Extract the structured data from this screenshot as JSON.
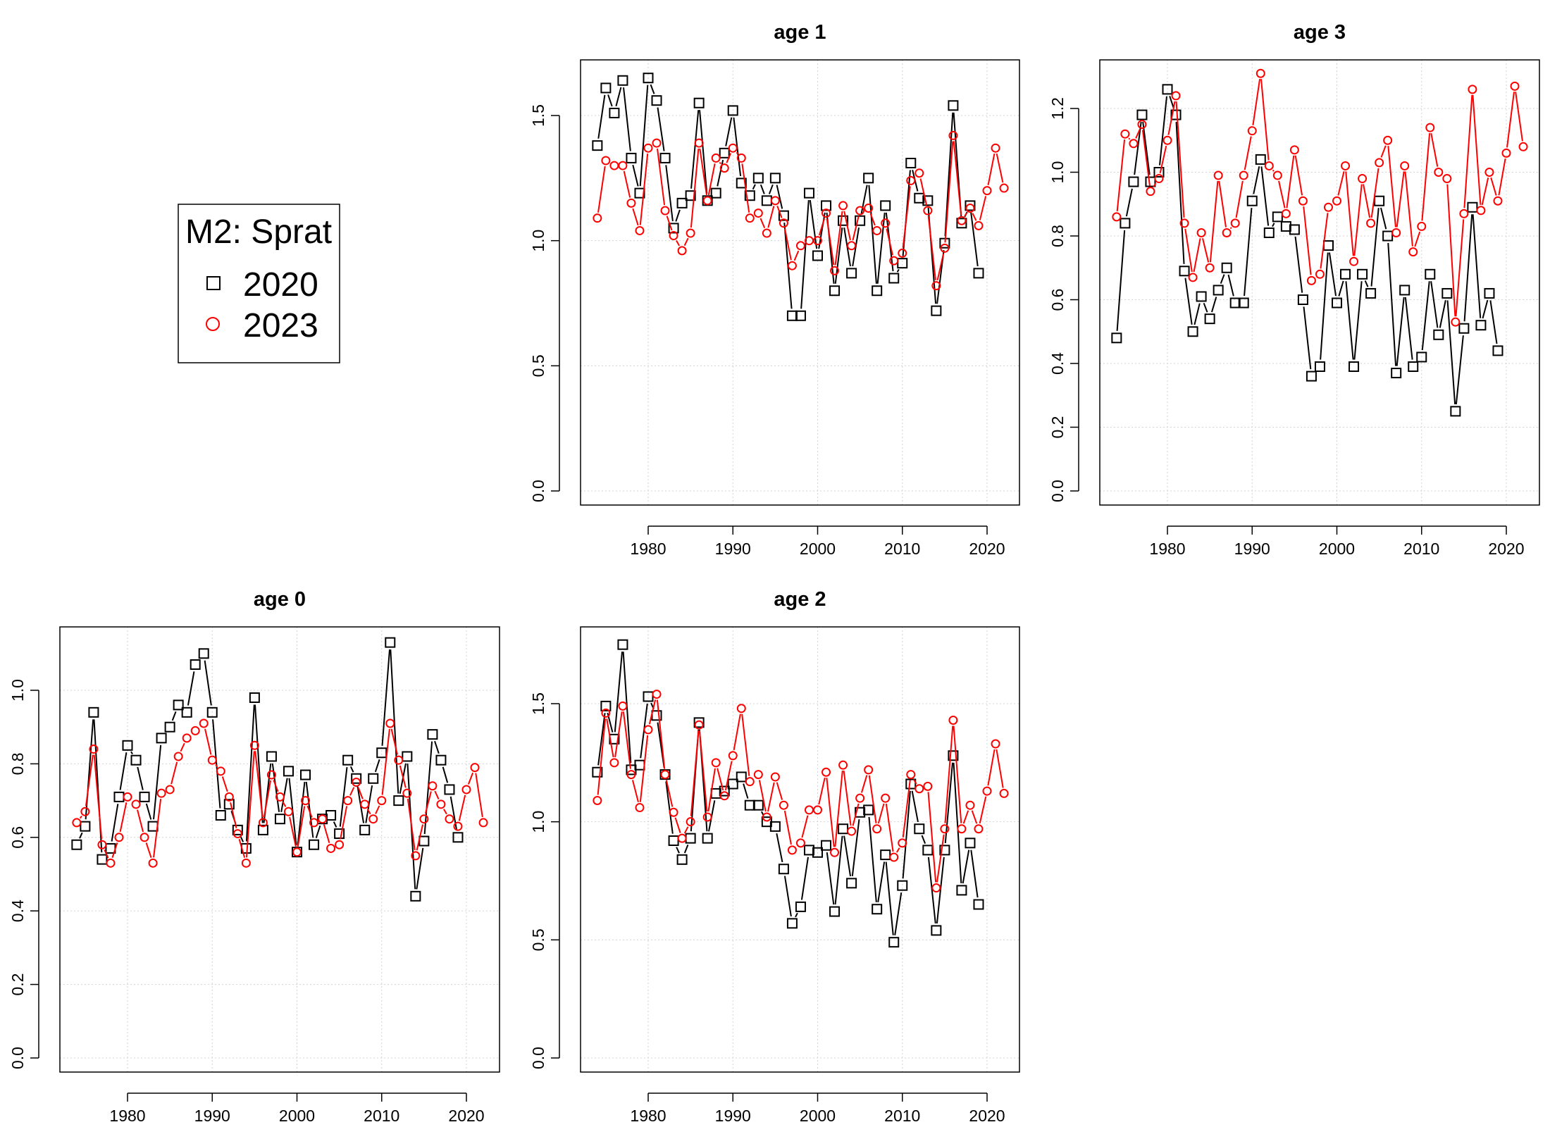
{
  "legend": {
    "title": "M2: Sprat",
    "entries": [
      {
        "label": "2020",
        "color": "#000000",
        "marker": "square-icon"
      },
      {
        "label": "2023",
        "color": "#ff0000",
        "marker": "circle-icon"
      }
    ]
  },
  "chart_data": [
    {
      "type": "line",
      "title": "age 1",
      "xlabel": "",
      "ylabel": "",
      "xlim": [
        1974,
        2022
      ],
      "ylim": [
        0,
        1.5
      ],
      "xticks": [
        "1980",
        "1990",
        "2000",
        "2010",
        "2020"
      ],
      "yticks": [
        "0.0",
        "0.5",
        "1.0",
        "1.5"
      ],
      "grid": true,
      "series": [
        {
          "name": "2020",
          "color": "#000000",
          "x": [
            1974,
            1975,
            1976,
            1977,
            1978,
            1979,
            1980,
            1981,
            1982,
            1983,
            1984,
            1985,
            1986,
            1987,
            1988,
            1989,
            1990,
            1991,
            1992,
            1993,
            1994,
            1995,
            1996,
            1997,
            1998,
            1999,
            2000,
            2001,
            2002,
            2003,
            2004,
            2005,
            2006,
            2007,
            2008,
            2009,
            2010,
            2011,
            2012,
            2013,
            2014,
            2015,
            2016,
            2017,
            2018,
            2019
          ],
          "y": [
            1.38,
            1.61,
            1.51,
            1.64,
            1.33,
            1.19,
            1.65,
            1.56,
            1.33,
            1.05,
            1.15,
            1.18,
            1.55,
            1.16,
            1.19,
            1.35,
            1.52,
            1.23,
            1.18,
            1.25,
            1.16,
            1.25,
            1.1,
            0.7,
            0.7,
            1.19,
            0.94,
            1.14,
            0.8,
            1.08,
            0.87,
            1.08,
            1.25,
            0.8,
            1.14,
            0.85,
            0.91,
            1.31,
            1.17,
            1.16,
            0.72,
            0.99,
            1.54,
            1.07,
            1.14,
            0.87
          ]
        },
        {
          "name": "2023",
          "color": "#ff0000",
          "x": [
            1974,
            1975,
            1976,
            1977,
            1978,
            1979,
            1980,
            1981,
            1982,
            1983,
            1984,
            1985,
            1986,
            1987,
            1988,
            1989,
            1990,
            1991,
            1992,
            1993,
            1994,
            1995,
            1996,
            1997,
            1998,
            1999,
            2000,
            2001,
            2002,
            2003,
            2004,
            2005,
            2006,
            2007,
            2008,
            2009,
            2010,
            2011,
            2012,
            2013,
            2014,
            2015,
            2016,
            2017,
            2018,
            2019,
            2020,
            2021,
            2022
          ],
          "y": [
            1.09,
            1.32,
            1.3,
            1.3,
            1.15,
            1.04,
            1.37,
            1.39,
            1.12,
            1.02,
            0.96,
            1.03,
            1.39,
            1.16,
            1.33,
            1.29,
            1.37,
            1.33,
            1.09,
            1.11,
            1.03,
            1.16,
            1.07,
            0.9,
            0.98,
            1.0,
            1.0,
            1.11,
            0.88,
            1.14,
            0.98,
            1.12,
            1.13,
            1.04,
            1.07,
            0.92,
            0.95,
            1.24,
            1.27,
            1.12,
            0.82,
            0.97,
            1.42,
            1.08,
            1.13,
            1.06,
            1.2,
            1.37,
            1.21
          ]
        }
      ]
    },
    {
      "type": "line",
      "title": "age 3",
      "xlabel": "",
      "ylabel": "",
      "xlim": [
        1974,
        2022
      ],
      "ylim": [
        0,
        1.3
      ],
      "xticks": [
        "1980",
        "1990",
        "2000",
        "2010",
        "2020"
      ],
      "yticks": [
        "0.0",
        "0.2",
        "0.4",
        "0.6",
        "0.8",
        "1.0",
        "1.2"
      ],
      "grid": true,
      "series": [
        {
          "name": "2020",
          "color": "#000000",
          "x": [
            1974,
            1975,
            1976,
            1977,
            1978,
            1979,
            1980,
            1981,
            1982,
            1983,
            1984,
            1985,
            1986,
            1987,
            1988,
            1989,
            1990,
            1991,
            1992,
            1993,
            1994,
            1995,
            1996,
            1997,
            1998,
            1999,
            2000,
            2001,
            2002,
            2003,
            2004,
            2005,
            2006,
            2007,
            2008,
            2009,
            2010,
            2011,
            2012,
            2013,
            2014,
            2015,
            2016,
            2017,
            2018,
            2019
          ],
          "y": [
            0.48,
            0.84,
            0.97,
            1.18,
            0.97,
            1.0,
            1.26,
            1.18,
            0.69,
            0.5,
            0.61,
            0.54,
            0.63,
            0.7,
            0.59,
            0.59,
            0.91,
            1.04,
            0.81,
            0.86,
            0.83,
            0.82,
            0.6,
            0.36,
            0.39,
            0.77,
            0.59,
            0.68,
            0.39,
            0.68,
            0.62,
            0.91,
            0.8,
            0.37,
            0.63,
            0.39,
            0.42,
            0.68,
            0.49,
            0.62,
            0.25,
            0.51,
            0.89,
            0.52,
            0.62,
            0.44
          ]
        },
        {
          "name": "2023",
          "color": "#ff0000",
          "x": [
            1974,
            1975,
            1976,
            1977,
            1978,
            1979,
            1980,
            1981,
            1982,
            1983,
            1984,
            1985,
            1986,
            1987,
            1988,
            1989,
            1990,
            1991,
            1992,
            1993,
            1994,
            1995,
            1996,
            1997,
            1998,
            1999,
            2000,
            2001,
            2002,
            2003,
            2004,
            2005,
            2006,
            2007,
            2008,
            2009,
            2010,
            2011,
            2012,
            2013,
            2014,
            2015,
            2016,
            2017,
            2018,
            2019,
            2020,
            2021,
            2022
          ],
          "y": [
            0.86,
            1.12,
            1.09,
            1.15,
            0.94,
            0.98,
            1.1,
            1.24,
            0.84,
            0.67,
            0.81,
            0.7,
            0.99,
            0.81,
            0.84,
            0.99,
            1.13,
            1.31,
            1.02,
            0.99,
            0.87,
            1.07,
            0.91,
            0.66,
            0.68,
            0.89,
            0.91,
            1.02,
            0.72,
            0.98,
            0.84,
            1.03,
            1.1,
            0.81,
            1.02,
            0.75,
            0.83,
            1.14,
            1.0,
            0.98,
            0.53,
            0.87,
            1.26,
            0.88,
            1.0,
            0.91,
            1.06,
            1.27,
            1.08
          ]
        }
      ]
    },
    {
      "type": "line",
      "title": "age 0",
      "xlabel": "",
      "ylabel": "",
      "xlim": [
        1974,
        2022
      ],
      "ylim": [
        0,
        1.1
      ],
      "xticks": [
        "1980",
        "1990",
        "2000",
        "2010",
        "2020"
      ],
      "yticks": [
        "0.0",
        "0.2",
        "0.4",
        "0.6",
        "0.8",
        "1.0"
      ],
      "grid": true,
      "series": [
        {
          "name": "2020",
          "color": "#000000",
          "x": [
            1974,
            1975,
            1976,
            1977,
            1978,
            1979,
            1980,
            1981,
            1982,
            1983,
            1984,
            1985,
            1986,
            1987,
            1988,
            1989,
            1990,
            1991,
            1992,
            1993,
            1994,
            1995,
            1996,
            1997,
            1998,
            1999,
            2000,
            2001,
            2002,
            2003,
            2004,
            2005,
            2006,
            2007,
            2008,
            2009,
            2010,
            2011,
            2012,
            2013,
            2014,
            2015,
            2016,
            2017,
            2018,
            2019
          ],
          "y": [
            0.58,
            0.63,
            0.94,
            0.54,
            0.57,
            0.71,
            0.85,
            0.81,
            0.71,
            0.63,
            0.87,
            0.9,
            0.96,
            0.94,
            1.07,
            1.1,
            0.94,
            0.66,
            0.69,
            0.62,
            0.57,
            0.98,
            0.62,
            0.82,
            0.65,
            0.78,
            0.56,
            0.77,
            0.58,
            0.65,
            0.66,
            0.61,
            0.81,
            0.76,
            0.62,
            0.76,
            0.83,
            1.13,
            0.7,
            0.82,
            0.44,
            0.59,
            0.88,
            0.81,
            0.73,
            0.6
          ]
        },
        {
          "name": "2023",
          "color": "#ff0000",
          "x": [
            1974,
            1975,
            1976,
            1977,
            1978,
            1979,
            1980,
            1981,
            1982,
            1983,
            1984,
            1985,
            1986,
            1987,
            1988,
            1989,
            1990,
            1991,
            1992,
            1993,
            1994,
            1995,
            1996,
            1997,
            1998,
            1999,
            2000,
            2001,
            2002,
            2003,
            2004,
            2005,
            2006,
            2007,
            2008,
            2009,
            2010,
            2011,
            2012,
            2013,
            2014,
            2015,
            2016,
            2017,
            2018,
            2019,
            2020,
            2021,
            2022
          ],
          "y": [
            0.64,
            0.67,
            0.84,
            0.58,
            0.53,
            0.6,
            0.71,
            0.69,
            0.6,
            0.53,
            0.72,
            0.73,
            0.82,
            0.87,
            0.89,
            0.91,
            0.81,
            0.78,
            0.71,
            0.61,
            0.53,
            0.85,
            0.64,
            0.77,
            0.71,
            0.67,
            0.56,
            0.7,
            0.64,
            0.65,
            0.57,
            0.58,
            0.7,
            0.75,
            0.69,
            0.65,
            0.7,
            0.91,
            0.81,
            0.72,
            0.55,
            0.65,
            0.74,
            0.69,
            0.65,
            0.63,
            0.73,
            0.79,
            0.64
          ]
        }
      ]
    },
    {
      "type": "line",
      "title": "age 2",
      "xlabel": "",
      "ylabel": "",
      "xlim": [
        1974,
        2022
      ],
      "ylim": [
        0,
        1.75
      ],
      "xticks": [
        "1980",
        "1990",
        "2000",
        "2010",
        "2020"
      ],
      "yticks": [
        "0.0",
        "0.5",
        "1.0",
        "1.5"
      ],
      "grid": true,
      "series": [
        {
          "name": "2020",
          "color": "#000000",
          "x": [
            1974,
            1975,
            1976,
            1977,
            1978,
            1979,
            1980,
            1981,
            1982,
            1983,
            1984,
            1985,
            1986,
            1987,
            1988,
            1989,
            1990,
            1991,
            1992,
            1993,
            1994,
            1995,
            1996,
            1997,
            1998,
            1999,
            2000,
            2001,
            2002,
            2003,
            2004,
            2005,
            2006,
            2007,
            2008,
            2009,
            2010,
            2011,
            2012,
            2013,
            2014,
            2015,
            2016,
            2017,
            2018,
            2019
          ],
          "y": [
            1.21,
            1.49,
            1.35,
            1.75,
            1.22,
            1.24,
            1.53,
            1.45,
            1.2,
            0.92,
            0.84,
            0.93,
            1.42,
            0.93,
            1.12,
            1.13,
            1.16,
            1.19,
            1.07,
            1.07,
            1.0,
            0.98,
            0.8,
            0.57,
            0.64,
            0.88,
            0.87,
            0.9,
            0.62,
            0.97,
            0.74,
            1.04,
            1.05,
            0.63,
            0.86,
            0.49,
            0.73,
            1.16,
            0.97,
            0.88,
            0.54,
            0.88,
            1.28,
            0.71,
            0.91,
            0.65
          ]
        },
        {
          "name": "2023",
          "color": "#ff0000",
          "x": [
            1974,
            1975,
            1976,
            1977,
            1978,
            1979,
            1980,
            1981,
            1982,
            1983,
            1984,
            1985,
            1986,
            1987,
            1988,
            1989,
            1990,
            1991,
            1992,
            1993,
            1994,
            1995,
            1996,
            1997,
            1998,
            1999,
            2000,
            2001,
            2002,
            2003,
            2004,
            2005,
            2006,
            2007,
            2008,
            2009,
            2010,
            2011,
            2012,
            2013,
            2014,
            2015,
            2016,
            2017,
            2018,
            2019,
            2020,
            2021,
            2022
          ],
          "y": [
            1.09,
            1.46,
            1.25,
            1.49,
            1.2,
            1.06,
            1.39,
            1.54,
            1.2,
            1.04,
            0.93,
            1.0,
            1.41,
            1.02,
            1.25,
            1.11,
            1.28,
            1.48,
            1.17,
            1.2,
            1.02,
            1.19,
            1.07,
            0.88,
            0.91,
            1.05,
            1.05,
            1.21,
            0.87,
            1.24,
            0.96,
            1.1,
            1.22,
            0.97,
            1.1,
            0.85,
            0.91,
            1.2,
            1.14,
            1.15,
            0.72,
            0.97,
            1.43,
            0.97,
            1.07,
            0.97,
            1.13,
            1.33,
            1.12
          ]
        }
      ]
    }
  ]
}
